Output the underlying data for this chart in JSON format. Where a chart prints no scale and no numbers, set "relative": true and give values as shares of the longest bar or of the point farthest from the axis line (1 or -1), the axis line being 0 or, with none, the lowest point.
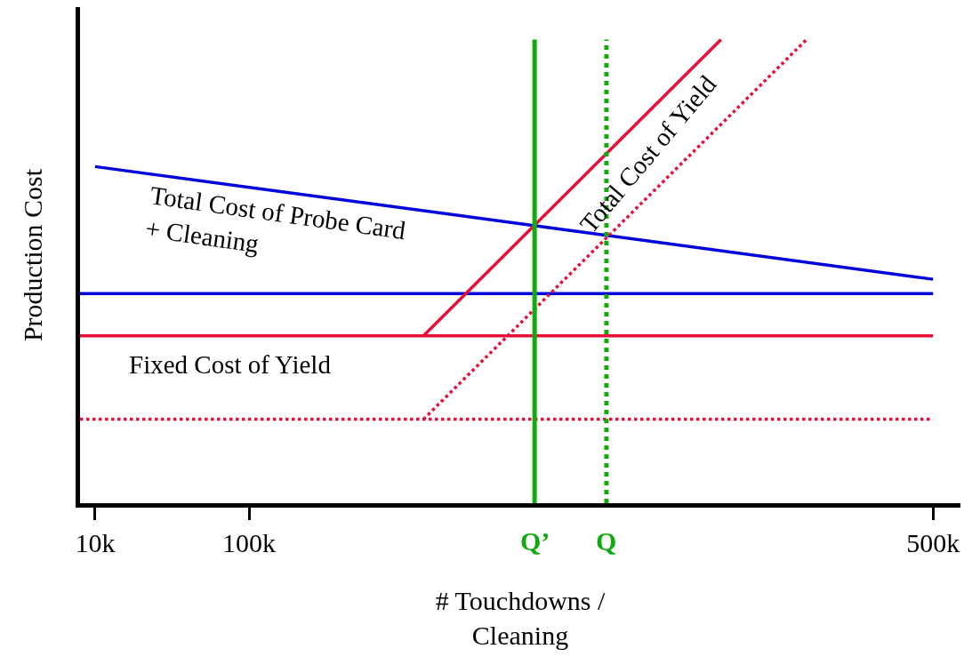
{
  "chart_data": {
    "type": "line",
    "relative": true,
    "xlabel": "# Touchdowns /\nCleaning",
    "ylabel": "Production Cost",
    "xlim": [
      1200,
      516000
    ],
    "xticks": [
      {
        "value": 10000,
        "label": "10k"
      },
      {
        "value": 100000,
        "label": "100k"
      },
      {
        "value": 500000,
        "label": "500k"
      }
    ],
    "series": [
      {
        "color": "#0000dd",
        "x": [
          10000,
          500000
        ],
        "values": [
          0.726,
          0.483
        ]
      },
      {
        "color": "#0000dd",
        "x": [
          1200,
          500000
        ],
        "values": [
          0.452,
          0.452
        ]
      },
      {
        "color": "#e8103a",
        "x": [
          1200,
          500000
        ],
        "values": [
          0.361,
          0.361
        ]
      },
      {
        "color": "#e8103a",
        "x": [
          202000,
          376000
        ],
        "values": [
          0.361,
          1.0
        ]
      },
      {
        "color": "#e8103a",
        "x": [
          1200,
          500000
        ],
        "values": [
          0.181,
          0.181
        ],
        "line_style": "dotted"
      },
      {
        "color": "#e8103a",
        "x": [
          202000,
          426000
        ],
        "values": [
          0.181,
          1.0
        ],
        "line_style": "dotted"
      }
    ],
    "ref_lines": [
      {
        "axis": "x",
        "value": 267000,
        "label": "Q’",
        "color": "#11aa11",
        "line_style": "solid"
      },
      {
        "axis": "x",
        "value": 309000,
        "label": "Q",
        "color": "#11aa11",
        "line_style": "dotted"
      }
    ],
    "annotations": [
      "Total Cost of Probe Card\n+ Cleaning",
      "Fixed Cost of Yield",
      "Total Cost of Yield"
    ],
    "marker": "none"
  }
}
